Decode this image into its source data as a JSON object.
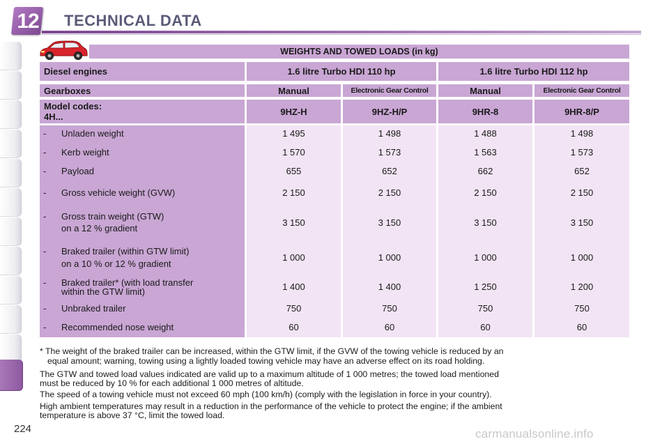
{
  "header": {
    "chapter_number": "12",
    "title": "TECHNICAL DATA"
  },
  "table": {
    "banner": "WEIGHTS AND TOWED LOADS (in kg)",
    "engines_label": "Diesel engines",
    "engine_1": "1.6 litre Turbo HDI 110 hp",
    "engine_2": "1.6 litre Turbo HDI 112 hp",
    "gearboxes_label": "Gearboxes",
    "gearboxes": [
      "Manual",
      "Electronic Gear Control",
      "Manual",
      "Electronic Gear Control"
    ],
    "model_codes_label_1": "Model codes:",
    "model_codes_label_2": "4H...",
    "model_codes": [
      "9HZ-H",
      "9HZ-H/P",
      "9HR-8",
      "9HR-8/P"
    ],
    "rows": [
      {
        "dash": "-",
        "label": [
          "Unladen weight"
        ],
        "values": [
          "1 495",
          "1 498",
          "1 488",
          "1 498"
        ]
      },
      {
        "dash": "-",
        "label": [
          "Kerb weight"
        ],
        "values": [
          "1 570",
          "1 573",
          "1 563",
          "1 573"
        ]
      },
      {
        "dash": "-",
        "label": [
          "Payload"
        ],
        "values": [
          "655",
          "652",
          "662",
          "652"
        ]
      },
      {
        "dash": "-",
        "label": [
          "Gross vehicle weight (GVW)"
        ],
        "values": [
          "2 150",
          "2 150",
          "2 150",
          "2 150"
        ]
      },
      {
        "dash": "-",
        "label": [
          "Gross train weight (GTW)",
          "on a 12 % gradient"
        ],
        "values": [
          "3 150",
          "3 150",
          "3 150",
          "3 150"
        ]
      },
      {
        "dash": "-",
        "label": [
          "Braked trailer (within GTW limit)",
          "on a 10 % or 12 % gradient"
        ],
        "values": [
          "1 000",
          "1 000",
          "1 000",
          "1 000"
        ]
      },
      {
        "dash": "-",
        "label": [
          "Braked trailer* (with load transfer",
          "within the GTW limit)"
        ],
        "values": [
          "1 400",
          "1 400",
          "1 250",
          "1 200"
        ]
      },
      {
        "dash": "-",
        "label": [
          "Unbraked trailer"
        ],
        "values": [
          "750",
          "750",
          "750",
          "750"
        ]
      },
      {
        "dash": "-",
        "label": [
          "Recommended nose weight"
        ],
        "values": [
          "60",
          "60",
          "60",
          "60"
        ]
      }
    ]
  },
  "notes": {
    "footnote_star": "*",
    "footnote_line1": "The weight of the braked trailer can be increased, within the GTW limit, if the GVW of the towing vehicle is reduced by an",
    "footnote_line2": "equal amount; warning, towing using a lightly loaded towing vehicle may have an adverse effect on its road holding.",
    "para2_line1": "The GTW and towed load values indicated are valid up to a maximum altitude of 1 000 metres; the towed load mentioned",
    "para2_line2": "must be reduced by 10 % for each additional 1 000 metres of altitude.",
    "para3": "The speed of a towing vehicle must not exceed 60 mph (100 km/h) (comply with the legislation in force in your country).",
    "para4_line1": "High ambient temperatures may result in a reduction in the performance of the vehicle to protect the engine; if the ambient",
    "para4_line2": "temperature is above 37 °C, limit the towed load."
  },
  "page_number": "224",
  "watermark": "carmanualsonline.info",
  "colors": {
    "accent_purple": "#8d5aa0",
    "header_cell": "#c9a6d4",
    "value_cell": "#f2e4f4",
    "car_red": "#d8242c"
  },
  "icons": [
    "car-icon"
  ]
}
